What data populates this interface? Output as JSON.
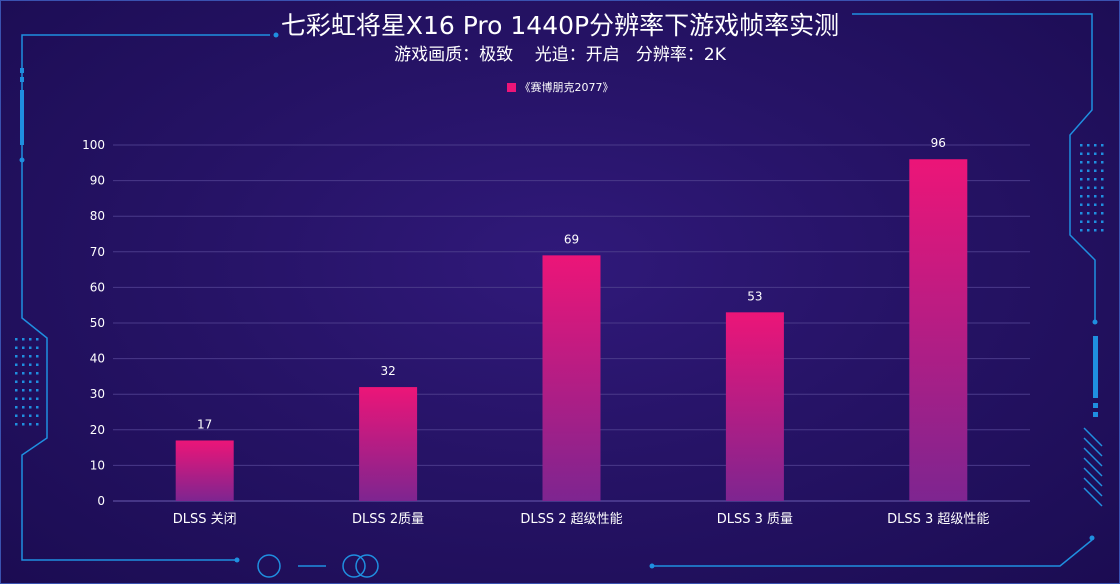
{
  "title": "七彩虹将星X16 Pro 1440P分辨率下游戏帧率实测",
  "subtitle": "游戏画质：极致    光追：开启   分辨率：2K",
  "colors": {
    "bar_top": "#ec1578",
    "bar_bottom": "#7e2590",
    "grid": "#4a3a8a",
    "frame": "#1f8fe0"
  },
  "chart_data": {
    "type": "bar",
    "categories": [
      "DLSS 关闭",
      "DLSS 2质量",
      "DLSS 2 超级性能",
      "DLSS 3 质量",
      "DLSS 3 超级性能"
    ],
    "series": [
      {
        "name": "《赛博朋克2077》",
        "values": [
          17,
          32,
          69,
          53,
          96
        ]
      }
    ],
    "ylim": [
      0,
      100
    ],
    "yticks": [
      0,
      10,
      20,
      30,
      40,
      50,
      60,
      70,
      80,
      90,
      100
    ],
    "grid": true,
    "legend_position": "top-center",
    "data_labels": true
  }
}
